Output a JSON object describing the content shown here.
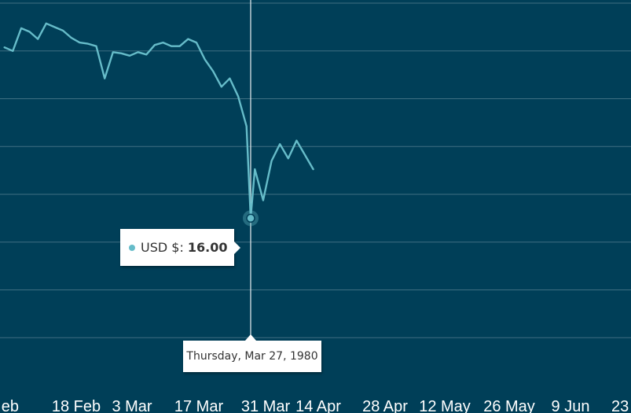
{
  "chart_data": {
    "type": "line",
    "series": [
      {
        "name": "USD $",
        "color": "#66bcc9",
        "points": [
          [
            "1980-01-28",
            30.3
          ],
          [
            "1980-01-30",
            30.0
          ],
          [
            "1980-02-01",
            31.9
          ],
          [
            "1980-02-03",
            31.6
          ],
          [
            "1980-02-05",
            31.0
          ],
          [
            "1980-02-07",
            32.3
          ],
          [
            "1980-02-09",
            32.0
          ],
          [
            "1980-02-11",
            31.7
          ],
          [
            "1980-02-13",
            31.1
          ],
          [
            "1980-02-15",
            30.7
          ],
          [
            "1980-02-17",
            30.6
          ],
          [
            "1980-02-19",
            30.4
          ],
          [
            "1980-02-21",
            27.7
          ],
          [
            "1980-02-23",
            29.9
          ],
          [
            "1980-02-25",
            29.8
          ],
          [
            "1980-02-27",
            29.6
          ],
          [
            "1980-02-29",
            29.9
          ],
          [
            "1980-03-02",
            29.7
          ],
          [
            "1980-03-04",
            30.5
          ],
          [
            "1980-03-06",
            30.7
          ],
          [
            "1980-03-08",
            30.4
          ],
          [
            "1980-03-10",
            30.4
          ],
          [
            "1980-03-12",
            31.0
          ],
          [
            "1980-03-14",
            30.7
          ],
          [
            "1980-03-16",
            29.3
          ],
          [
            "1980-03-18",
            28.3
          ],
          [
            "1980-03-20",
            27.0
          ],
          [
            "1980-03-22",
            27.7
          ],
          [
            "1980-03-24",
            26.2
          ],
          [
            "1980-03-26",
            23.7
          ],
          [
            "1980-03-28",
            20.1
          ],
          [
            "1980-03-30",
            17.5
          ],
          [
            "1980-04-01",
            20.8
          ],
          [
            "1980-04-03",
            22.2
          ],
          [
            "1980-04-05",
            21.0
          ],
          [
            "1980-04-07",
            22.5
          ],
          [
            "1980-04-09",
            21.3
          ],
          [
            "1980-04-11",
            20.1
          ],
          [
            "1980-03-27",
            16.0
          ]
        ]
      }
    ],
    "x_ticks": [
      "18 Feb",
      "3 Mar",
      "17 Mar",
      "31 Mar",
      "14 Apr",
      "28 Apr",
      "12 May",
      "26 May",
      "9 Jun"
    ],
    "x_ticks_partial": {
      "left": "eb",
      "right": "23"
    },
    "ylim": [
      2,
      34
    ],
    "grid": true,
    "hover_point": {
      "x": "1980-03-27",
      "y": 16.0
    }
  },
  "tooltip": {
    "series_label": "USD $:",
    "value": "16.00",
    "date": "Thursday, Mar 27, 1980"
  }
}
